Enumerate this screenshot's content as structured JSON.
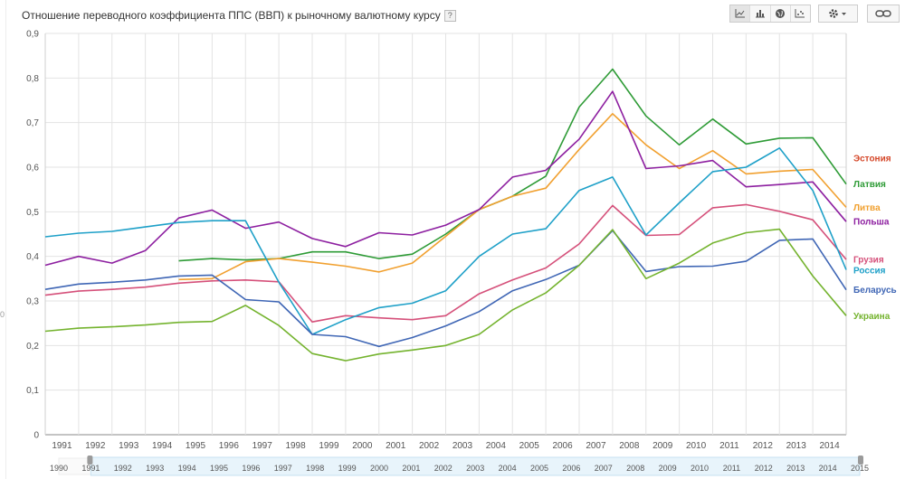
{
  "title": "Отношение переводного коэффициента ППС (ВВП) к рыночному валютному курсу",
  "help_label": "?",
  "edge_mark": "0",
  "toolbar": {
    "views": [
      {
        "icon": "line-chart-icon",
        "active": true
      },
      {
        "icon": "bar-chart-icon",
        "active": false
      },
      {
        "icon": "globe-icon",
        "active": false
      },
      {
        "icon": "scatter-chart-icon",
        "active": false
      }
    ],
    "settings_icon": "gear-icon",
    "link_icon": "link-icon"
  },
  "chart_data": {
    "type": "line",
    "title": "Отношение переводного коэффициента ППС (ВВП) к рыночному валютному курсу",
    "x": [
      1991,
      1992,
      1993,
      1994,
      1995,
      1996,
      1997,
      1998,
      1999,
      2000,
      2001,
      2002,
      2003,
      2004,
      2005,
      2006,
      2007,
      2008,
      2009,
      2010,
      2011,
      2012,
      2013,
      2014,
      2015
    ],
    "x_tick_labels": [
      "1991",
      "1992",
      "1993",
      "1994",
      "1995",
      "1996",
      "1997",
      "1998",
      "1999",
      "2000",
      "2001",
      "2002",
      "2003",
      "2004",
      "2005",
      "2006",
      "2007",
      "2008",
      "2009",
      "2010",
      "2011",
      "2012",
      "2013",
      "2014"
    ],
    "ylim": [
      0,
      0.9
    ],
    "y_ticks": [
      "0",
      "0,1",
      "0,2",
      "0,3",
      "0,4",
      "0,5",
      "0,6",
      "0,7",
      "0,8",
      "0,9"
    ],
    "grid": true,
    "legend": "right, at line ends",
    "series": [
      {
        "name": "Эстония",
        "color": "#d5482a",
        "values": [
          null,
          null,
          null,
          null,
          null,
          null,
          null,
          null,
          null,
          null,
          null,
          null,
          null,
          null,
          null,
          null,
          null,
          null,
          null,
          null,
          null,
          null,
          null,
          null,
          null
        ]
      },
      {
        "name": "Латвия",
        "color": "#2e9b36",
        "values": [
          null,
          null,
          null,
          null,
          0.39,
          0.395,
          0.392,
          0.395,
          0.41,
          0.41,
          0.395,
          0.405,
          0.45,
          0.505,
          0.535,
          0.58,
          0.735,
          0.82,
          0.715,
          0.65,
          0.708,
          0.652,
          0.665,
          0.666,
          0.562
        ]
      },
      {
        "name": "Литва",
        "color": "#f1a02f",
        "values": [
          null,
          null,
          null,
          null,
          0.348,
          0.35,
          0.388,
          0.395,
          0.387,
          0.378,
          0.365,
          0.385,
          0.445,
          0.505,
          0.535,
          0.553,
          0.64,
          0.72,
          0.65,
          0.597,
          0.637,
          0.585,
          0.591,
          0.595,
          0.51
        ]
      },
      {
        "name": "Польша",
        "color": "#8d1fa0",
        "values": [
          0.38,
          0.4,
          0.385,
          0.413,
          0.486,
          0.504,
          0.463,
          0.477,
          0.44,
          0.422,
          0.453,
          0.448,
          0.47,
          0.505,
          0.578,
          0.593,
          0.663,
          0.77,
          0.597,
          0.603,
          0.615,
          0.556,
          0.561,
          0.567,
          0.478
        ]
      },
      {
        "name": "Грузия",
        "color": "#d5507a",
        "values": [
          0.313,
          0.322,
          0.326,
          0.331,
          0.34,
          0.345,
          0.347,
          0.343,
          0.253,
          0.267,
          0.262,
          0.258,
          0.267,
          0.316,
          0.347,
          0.374,
          0.428,
          0.514,
          0.447,
          0.449,
          0.509,
          0.516,
          0.501,
          0.482,
          0.393
        ]
      },
      {
        "name": "Россия",
        "color": "#1ea0c8",
        "values": [
          0.444,
          0.452,
          0.456,
          0.466,
          0.476,
          0.48,
          0.48,
          0.342,
          0.225,
          0.258,
          0.285,
          0.295,
          0.323,
          0.4,
          0.45,
          0.462,
          0.548,
          0.578,
          0.448,
          0.52,
          0.59,
          0.6,
          0.643,
          0.548,
          0.37
        ]
      },
      {
        "name": "Беларусь",
        "color": "#3f66b5",
        "values": [
          0.326,
          0.338,
          0.342,
          0.347,
          0.356,
          0.358,
          0.303,
          0.298,
          0.225,
          0.22,
          0.198,
          0.218,
          0.244,
          0.276,
          0.323,
          0.348,
          0.38,
          0.458,
          0.366,
          0.377,
          0.378,
          0.389,
          0.436,
          0.439,
          0.325
        ]
      },
      {
        "name": "Украина",
        "color": "#74b32e",
        "values": [
          0.232,
          0.239,
          0.242,
          0.246,
          0.252,
          0.254,
          0.29,
          0.245,
          0.182,
          0.166,
          0.181,
          0.19,
          0.2,
          0.225,
          0.28,
          0.318,
          0.38,
          0.46,
          0.35,
          0.385,
          0.43,
          0.453,
          0.461,
          0.356,
          0.267
        ]
      }
    ]
  },
  "navigator": {
    "tick_labels": [
      "1990",
      "1991",
      "1992",
      "1993",
      "1994",
      "1995",
      "1996",
      "1997",
      "1998",
      "1999",
      "2000",
      "2001",
      "2002",
      "2003",
      "2004",
      "2005",
      "2006",
      "2007",
      "2008",
      "2009",
      "2010",
      "2011",
      "2012",
      "2013",
      "2014",
      "2015"
    ]
  }
}
